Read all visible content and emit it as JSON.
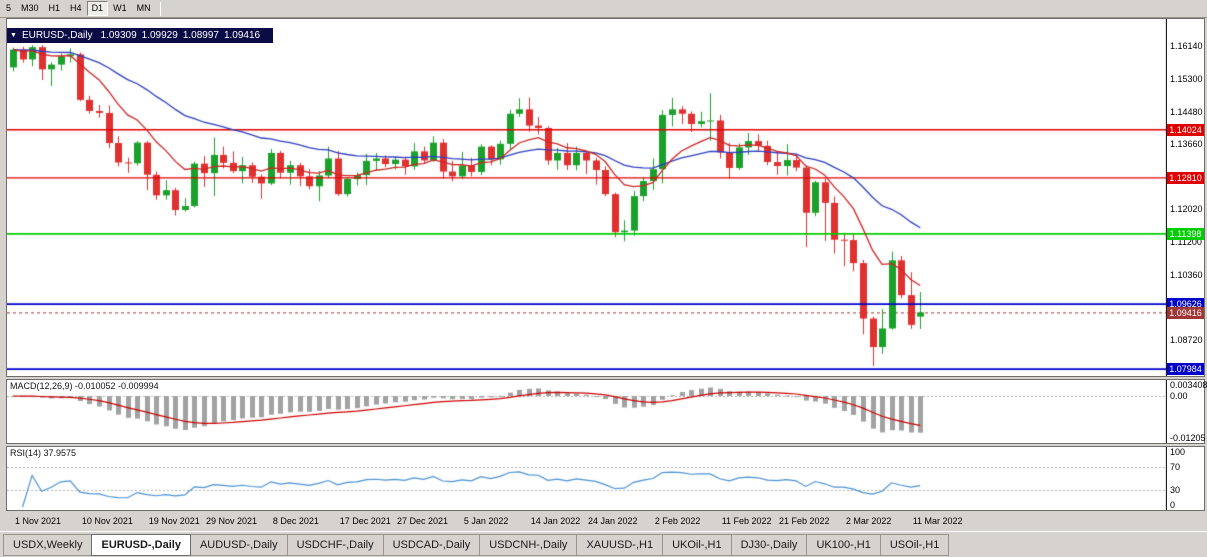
{
  "icons": {
    "dropdown_arrow": "▼"
  },
  "toolbar": {
    "timeframes": [
      {
        "label": "5",
        "active": false
      },
      {
        "label": "M30",
        "active": false
      },
      {
        "label": "H1",
        "active": false
      },
      {
        "label": "H4",
        "active": false
      },
      {
        "label": "D1",
        "active": true
      },
      {
        "label": "W1",
        "active": false
      },
      {
        "label": "MN",
        "active": false
      }
    ]
  },
  "tabs": [
    {
      "label": "USDX,Weekly",
      "active": false
    },
    {
      "label": "EURUSD-,Daily",
      "active": true
    },
    {
      "label": "AUDUSD-,Daily",
      "active": false
    },
    {
      "label": "USDCHF-,Daily",
      "active": false
    },
    {
      "label": "USDCAD-,Daily",
      "active": false
    },
    {
      "label": "USDCNH-,Daily",
      "active": false
    },
    {
      "label": "XAUUSD-,H1",
      "active": false
    },
    {
      "label": "UKOil-,H1",
      "active": false
    },
    {
      "label": "DJ30-,Daily",
      "active": false
    },
    {
      "label": "UK100-,H1",
      "active": false
    },
    {
      "label": "USOil-,H1",
      "active": false
    }
  ],
  "chart_data": {
    "type": "candlestick",
    "symbol": "EURUSD-,Daily",
    "ohlc_display": {
      "open": "1.09309",
      "high": "1.09929",
      "low": "1.08997",
      "close": "1.09416"
    },
    "price_ticks": [
      "1.16140",
      "1.15300",
      "1.14480",
      "1.13660",
      "1.12840",
      "1.12020",
      "1.11200",
      "1.10360",
      "1.09540",
      "1.08720",
      "1.07900"
    ],
    "x_labels": [
      {
        "index": 0,
        "text": "1 Nov 2021"
      },
      {
        "index": 7,
        "text": "10 Nov 2021"
      },
      {
        "index": 14,
        "text": "19 Nov 2021"
      },
      {
        "index": 20,
        "text": "29 Nov 2021"
      },
      {
        "index": 27,
        "text": "8 Dec 2021"
      },
      {
        "index": 34,
        "text": "17 Dec 2021"
      },
      {
        "index": 40,
        "text": "27 Dec 2021"
      },
      {
        "index": 47,
        "text": "5 Jan 2022"
      },
      {
        "index": 54,
        "text": "14 Jan 2022"
      },
      {
        "index": 60,
        "text": "24 Jan 2022"
      },
      {
        "index": 67,
        "text": "2 Feb 2022"
      },
      {
        "index": 74,
        "text": "11 Feb 2022"
      },
      {
        "index": 80,
        "text": "21 Feb 2022"
      },
      {
        "index": 87,
        "text": "2 Mar 2022"
      },
      {
        "index": 94,
        "text": "11 Mar 2022"
      }
    ],
    "levels": [
      {
        "value": "1.14024",
        "color": "#df0000",
        "line_width": 1.4
      },
      {
        "value": "1.12810",
        "color": "#df0000",
        "line_width": 1.4
      },
      {
        "value": "1.11398",
        "color": "#00ce00",
        "line_width": 1.6
      },
      {
        "value": "1.09626",
        "color": "#0000cd",
        "line_width": 1.8
      },
      {
        "value": "1.07984",
        "color": "#0000cd",
        "line_width": 1.8
      }
    ],
    "bid": {
      "value": "1.09416",
      "color": "#a03636"
    },
    "moving_averages": [
      {
        "name": "slow-ma",
        "period": 30,
        "method": "ema",
        "color": "#2b3fc0"
      },
      {
        "name": "fast-ma",
        "period": 10,
        "method": "ema",
        "color": "#d02424"
      }
    ],
    "macd": {
      "label": "MACD(12,26,9) -0.010052 -0.009994",
      "params": [
        12,
        26,
        9
      ],
      "values": [
        "-0.010052",
        "-0.009994"
      ],
      "axis_ticks": [
        "0.003408",
        "0.00",
        "-0.01205"
      ],
      "signal_color": "#cc0000"
    },
    "rsi": {
      "label": "RSI(14) 37.9575",
      "period": 14,
      "value": "37.9575",
      "axis_ticks": [
        "100",
        "70",
        "30",
        "0"
      ],
      "levels": [
        70,
        30
      ],
      "color": "#4a90d2"
    },
    "colors": {
      "up": "#1ba12b",
      "down": "#e03131",
      "histogram": "#a2a2a2",
      "symbol_bar_bg": "#0b0b45"
    },
    "candles": [
      [
        1.156,
        1.161,
        1.155,
        1.1605
      ],
      [
        1.1605,
        1.1612,
        1.1572,
        1.158
      ],
      [
        1.158,
        1.1616,
        1.1563,
        1.1611
      ],
      [
        1.1611,
        1.1616,
        1.1528,
        1.1555
      ],
      [
        1.1555,
        1.1573,
        1.1513,
        1.1567
      ],
      [
        1.1567,
        1.1595,
        1.1552,
        1.1588
      ],
      [
        1.1588,
        1.1608,
        1.1572,
        1.1593
      ],
      [
        1.1593,
        1.1598,
        1.1475,
        1.1478
      ],
      [
        1.1478,
        1.1488,
        1.1443,
        1.145
      ],
      [
        1.145,
        1.1465,
        1.1433,
        1.1445
      ],
      [
        1.1445,
        1.1464,
        1.1356,
        1.1369
      ],
      [
        1.1369,
        1.1386,
        1.131,
        1.132
      ],
      [
        1.132,
        1.1332,
        1.1294,
        1.1318
      ],
      [
        1.1318,
        1.1374,
        1.1312,
        1.137
      ],
      [
        1.137,
        1.1374,
        1.125,
        1.1289
      ],
      [
        1.1289,
        1.1297,
        1.1226,
        1.1237
      ],
      [
        1.1237,
        1.1275,
        1.1226,
        1.125
      ],
      [
        1.125,
        1.1256,
        1.1186,
        1.12
      ],
      [
        1.12,
        1.123,
        1.1196,
        1.121
      ],
      [
        1.121,
        1.1322,
        1.1206,
        1.1317
      ],
      [
        1.1317,
        1.1336,
        1.1258,
        1.1293
      ],
      [
        1.1293,
        1.1383,
        1.1235,
        1.1339
      ],
      [
        1.1339,
        1.136,
        1.1305,
        1.1319
      ],
      [
        1.1319,
        1.1348,
        1.1293,
        1.1298
      ],
      [
        1.1298,
        1.1334,
        1.1267,
        1.1313
      ],
      [
        1.1313,
        1.132,
        1.1268,
        1.1284
      ],
      [
        1.1284,
        1.129,
        1.1228,
        1.1267
      ],
      [
        1.1267,
        1.1354,
        1.1263,
        1.1344
      ],
      [
        1.1344,
        1.1349,
        1.128,
        1.1294
      ],
      [
        1.1294,
        1.1324,
        1.1264,
        1.1313
      ],
      [
        1.1313,
        1.1319,
        1.126,
        1.1285
      ],
      [
        1.1285,
        1.1303,
        1.1252,
        1.126
      ],
      [
        1.126,
        1.1298,
        1.1222,
        1.1287
      ],
      [
        1.1287,
        1.136,
        1.128,
        1.133
      ],
      [
        1.133,
        1.1349,
        1.1236,
        1.124
      ],
      [
        1.124,
        1.1282,
        1.1234,
        1.1278
      ],
      [
        1.1278,
        1.1295,
        1.1262,
        1.1288
      ],
      [
        1.1288,
        1.1342,
        1.1263,
        1.1324
      ],
      [
        1.1324,
        1.1344,
        1.13,
        1.133
      ],
      [
        1.133,
        1.1338,
        1.1308,
        1.1316
      ],
      [
        1.1316,
        1.1334,
        1.1302,
        1.1327
      ],
      [
        1.1327,
        1.1335,
        1.1289,
        1.131
      ],
      [
        1.131,
        1.1369,
        1.1301,
        1.1348
      ],
      [
        1.1348,
        1.136,
        1.1316,
        1.1325
      ],
      [
        1.1325,
        1.1386,
        1.1321,
        1.137
      ],
      [
        1.137,
        1.1379,
        1.1279,
        1.1297
      ],
      [
        1.1297,
        1.1324,
        1.1272,
        1.1285
      ],
      [
        1.1285,
        1.1347,
        1.1278,
        1.1312
      ],
      [
        1.1312,
        1.1332,
        1.1285,
        1.1296
      ],
      [
        1.1296,
        1.1366,
        1.1288,
        1.136
      ],
      [
        1.136,
        1.1363,
        1.1313,
        1.1328
      ],
      [
        1.1328,
        1.1375,
        1.1314,
        1.1367
      ],
      [
        1.1367,
        1.1453,
        1.1354,
        1.1443
      ],
      [
        1.1443,
        1.1482,
        1.1435,
        1.1454
      ],
      [
        1.1454,
        1.1484,
        1.1398,
        1.1413
      ],
      [
        1.1413,
        1.1435,
        1.1391,
        1.1407
      ],
      [
        1.1407,
        1.1411,
        1.1314,
        1.1325
      ],
      [
        1.1325,
        1.1357,
        1.1302,
        1.1344
      ],
      [
        1.1344,
        1.1369,
        1.1301,
        1.1313
      ],
      [
        1.1313,
        1.136,
        1.13,
        1.1344
      ],
      [
        1.1344,
        1.1348,
        1.1291,
        1.1325
      ],
      [
        1.1325,
        1.1332,
        1.1264,
        1.1301
      ],
      [
        1.1301,
        1.131,
        1.1235,
        1.124
      ],
      [
        1.124,
        1.1244,
        1.1131,
        1.1144
      ],
      [
        1.1144,
        1.1174,
        1.1121,
        1.1148
      ],
      [
        1.1148,
        1.1248,
        1.1135,
        1.1235
      ],
      [
        1.1235,
        1.1283,
        1.1222,
        1.1273
      ],
      [
        1.1273,
        1.133,
        1.1251,
        1.1303
      ],
      [
        1.1303,
        1.1452,
        1.1267,
        1.144
      ],
      [
        1.144,
        1.1483,
        1.1411,
        1.1454
      ],
      [
        1.1454,
        1.1462,
        1.1417,
        1.1443
      ],
      [
        1.1443,
        1.1449,
        1.1397,
        1.1417
      ],
      [
        1.1417,
        1.1448,
        1.1408,
        1.1424
      ],
      [
        1.1424,
        1.1495,
        1.1375,
        1.1426
      ],
      [
        1.1426,
        1.144,
        1.133,
        1.1345
      ],
      [
        1.1345,
        1.1369,
        1.1279,
        1.1306
      ],
      [
        1.1306,
        1.1368,
        1.1301,
        1.1358
      ],
      [
        1.1358,
        1.1395,
        1.1339,
        1.1374
      ],
      [
        1.1374,
        1.1391,
        1.1347,
        1.1362
      ],
      [
        1.1362,
        1.1375,
        1.1313,
        1.1321
      ],
      [
        1.1321,
        1.1348,
        1.1289,
        1.1311
      ],
      [
        1.1311,
        1.1366,
        1.1287,
        1.1326
      ],
      [
        1.1326,
        1.1342,
        1.1298,
        1.1307
      ],
      [
        1.1307,
        1.1313,
        1.1106,
        1.1193
      ],
      [
        1.1193,
        1.1274,
        1.1184,
        1.127
      ],
      [
        1.127,
        1.1279,
        1.1122,
        1.1218
      ],
      [
        1.1218,
        1.1234,
        1.109,
        1.1125
      ],
      [
        1.1125,
        1.1143,
        1.1058,
        1.1124
      ],
      [
        1.1124,
        1.1139,
        1.1045,
        1.1066
      ],
      [
        1.1066,
        1.1074,
        1.0886,
        1.0926
      ],
      [
        1.0926,
        1.0931,
        1.0806,
        1.0854
      ],
      [
        1.0854,
        1.095,
        1.0837,
        1.0901
      ],
      [
        1.0901,
        1.1095,
        1.0898,
        1.1073
      ],
      [
        1.1073,
        1.1084,
        1.0977,
        1.0985
      ],
      [
        1.0985,
        1.1043,
        1.09,
        1.091
      ],
      [
        1.09309,
        1.09929,
        1.08997,
        1.09416
      ]
    ]
  }
}
